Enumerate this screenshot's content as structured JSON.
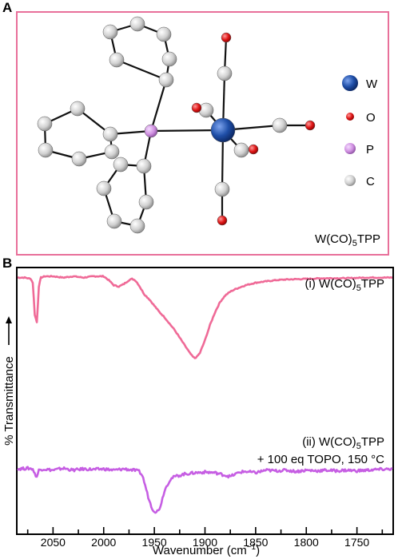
{
  "panel_a": {
    "letter": "A",
    "legend": [
      {
        "label": "W",
        "color": "#1f4fa8",
        "icon": "tungsten-atom"
      },
      {
        "label": "O",
        "color": "#e01818",
        "icon": "oxygen-atom"
      },
      {
        "label": "P",
        "color": "#cf8fe0",
        "icon": "phosphorus-atom"
      },
      {
        "label": "C",
        "color": "#d9d9d9",
        "icon": "carbon-atom"
      }
    ],
    "caption": {
      "pre": "W(CO)",
      "sub": "5",
      "post": "TPP"
    },
    "frame_color": "#e8709a"
  },
  "panel_b": {
    "letter": "B",
    "y_axis_title": "% Transmittance",
    "x_axis_title": "Wavenumber (cm",
    "x_axis_title_sup": "−1",
    "x_axis_title_end": ")",
    "series_labels": [
      {
        "pre": "(i) W(CO)",
        "sub": "5",
        "post": "TPP"
      },
      {
        "pre": "(ii) W(CO)",
        "sub": "5",
        "post": "TPP",
        "line2": "+ 100 eq TOPO, 150 °C"
      }
    ]
  },
  "chart_data": {
    "type": "line",
    "xlabel": "Wavenumber (cm−1)",
    "ylabel": "% Transmittance",
    "x_reversed": true,
    "xlim": [
      2085,
      1715
    ],
    "xticks": [
      2050,
      2000,
      1950,
      1900,
      1850,
      1800,
      1750
    ],
    "y_tick_labels": false,
    "grid": false,
    "series": [
      {
        "name": "(i) W(CO)5TPP",
        "color": "#ef6a97",
        "x": [
          2085,
          2078,
          2072,
          2070,
          2068,
          2066,
          2064,
          2062,
          2058,
          2050,
          2040,
          2030,
          2020,
          2010,
          2000,
          1995,
          1990,
          1985,
          1980,
          1975,
          1972,
          1969,
          1966,
          1963,
          1960,
          1955,
          1950,
          1945,
          1940,
          1935,
          1930,
          1925,
          1920,
          1915,
          1912,
          1910,
          1908,
          1905,
          1900,
          1895,
          1890,
          1885,
          1880,
          1875,
          1870,
          1860,
          1850,
          1840,
          1830,
          1820,
          1800,
          1780,
          1760,
          1740,
          1715
        ],
        "y": [
          99,
          99,
          98,
          95,
          70,
          64,
          92,
          99,
          100,
          100,
          99,
          100,
          99,
          100,
          100,
          97,
          93,
          92,
          94,
          97,
          98,
          97,
          94,
          90,
          86,
          82,
          77,
          72,
          68,
          63,
          58,
          52,
          46,
          40,
          37,
          36,
          37,
          40,
          50,
          62,
          72,
          80,
          85,
          88,
          90,
          93,
          95,
          96,
          97,
          97.5,
          98,
          98.5,
          98.5,
          99,
          99
        ]
      },
      {
        "name": "(ii) W(CO)5TPP + 100 eq TOPO, 150 °C",
        "color": "#c65ee3",
        "x": [
          2085,
          2075,
          2070,
          2068,
          2066,
          2064,
          2060,
          2050,
          2040,
          2030,
          2020,
          2010,
          2000,
          1990,
          1980,
          1975,
          1970,
          1965,
          1962,
          1960,
          1958,
          1956,
          1954,
          1952,
          1950,
          1948,
          1946,
          1944,
          1942,
          1940,
          1937,
          1934,
          1930,
          1925,
          1920,
          1910,
          1900,
          1890,
          1880,
          1875,
          1870,
          1865,
          1860,
          1850,
          1840,
          1830,
          1820,
          1810,
          1800,
          1790,
          1780,
          1770,
          1760,
          1750,
          1740,
          1730,
          1715
        ],
        "y": [
          48,
          48.5,
          48,
          44,
          42,
          47,
          48,
          47,
          48.5,
          47,
          48,
          47.5,
          48,
          47,
          48,
          47.5,
          47,
          46,
          43,
          38,
          32,
          26,
          21,
          17,
          15,
          14.5,
          15.5,
          19,
          25,
          31,
          36,
          40,
          42,
          43,
          44,
          45,
          45.5,
          45,
          43,
          42,
          44,
          45.5,
          46,
          45,
          47,
          46.5,
          47,
          46,
          47,
          46.5,
          47,
          46.5,
          47,
          46.5,
          47,
          47.5,
          48
        ]
      }
    ]
  }
}
